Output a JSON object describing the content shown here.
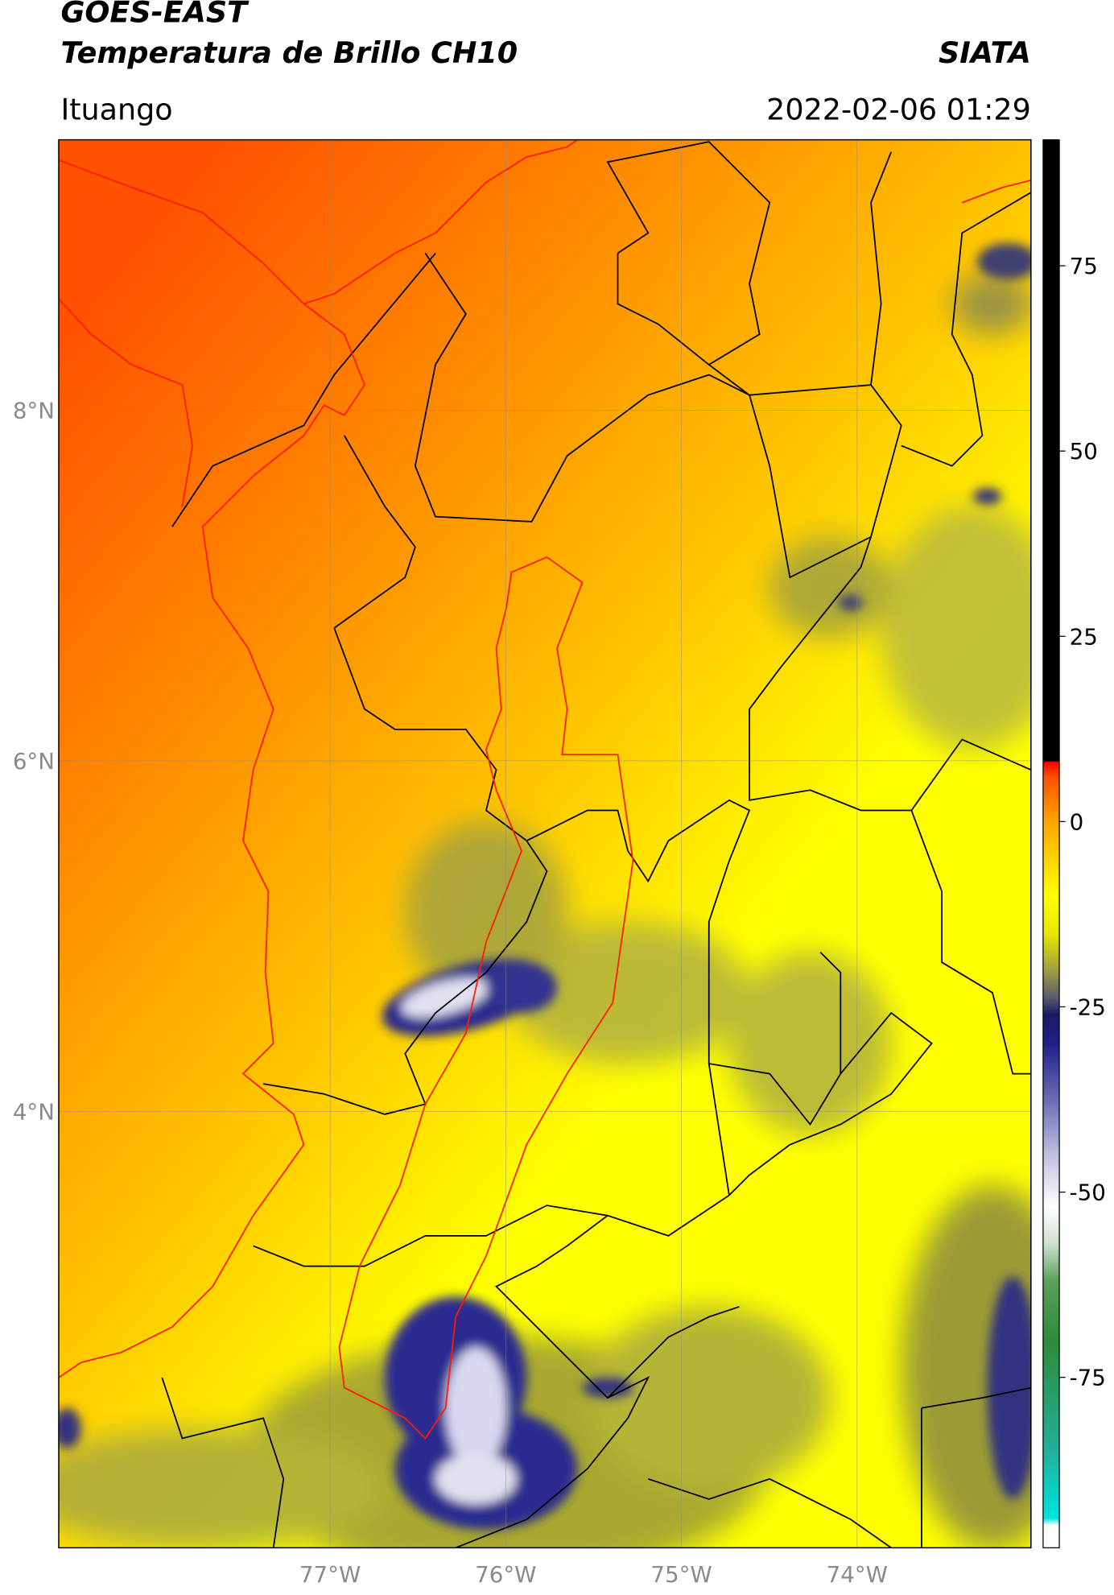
{
  "header": {
    "title": "GOES-EAST",
    "subtitle": "Temperatura de Brillo CH10",
    "source": "SIATA",
    "region": "Ituango",
    "datetime": "2022-02-06 01:29"
  },
  "map": {
    "lonlim": [
      -78.545,
      -73.01
    ],
    "latlim": [
      1.51,
      9.543
    ],
    "grid": true,
    "lonticks": [
      {
        "value": -77,
        "label": "77°W"
      },
      {
        "value": -76,
        "label": "76°W"
      },
      {
        "value": -75,
        "label": "75°W"
      },
      {
        "value": -74,
        "label": "74°W"
      }
    ],
    "latticks": [
      {
        "value": 8,
        "label": "8°N"
      },
      {
        "value": 6,
        "label": "6°N"
      },
      {
        "value": 4,
        "label": "4°N"
      }
    ]
  },
  "colorbar": {
    "lim": [
      -98,
      92
    ],
    "ticks": [
      75,
      50,
      25,
      0,
      -25,
      -50,
      -75
    ],
    "colormap": [
      {
        "value": -98,
        "color": "#ffffff"
      },
      {
        "value": -95,
        "color": "#ffffff"
      },
      {
        "value": -94,
        "color": "#00e5e0"
      },
      {
        "value": -85,
        "color": "#22b09a"
      },
      {
        "value": -70,
        "color": "#2e8b3a"
      },
      {
        "value": -62,
        "color": "#5aa05a"
      },
      {
        "value": -57,
        "color": "#d0e0d0"
      },
      {
        "value": -52,
        "color": "#ffffff"
      },
      {
        "value": -45,
        "color": "#c0c0e0"
      },
      {
        "value": -38,
        "color": "#7070b8"
      },
      {
        "value": -30,
        "color": "#20208a"
      },
      {
        "value": -26,
        "color": "#1a1a60"
      },
      {
        "value": -24,
        "color": "#555570"
      },
      {
        "value": -20,
        "color": "#a0a040"
      },
      {
        "value": -15,
        "color": "#e8e800"
      },
      {
        "value": -10,
        "color": "#ffff00"
      },
      {
        "value": 0,
        "color": "#ffa500"
      },
      {
        "value": 6,
        "color": "#ff5000"
      },
      {
        "value": 8,
        "color": "#ff0000"
      },
      {
        "value": 8.2,
        "color": "#000000"
      },
      {
        "value": 92,
        "color": "#000000"
      }
    ]
  }
}
